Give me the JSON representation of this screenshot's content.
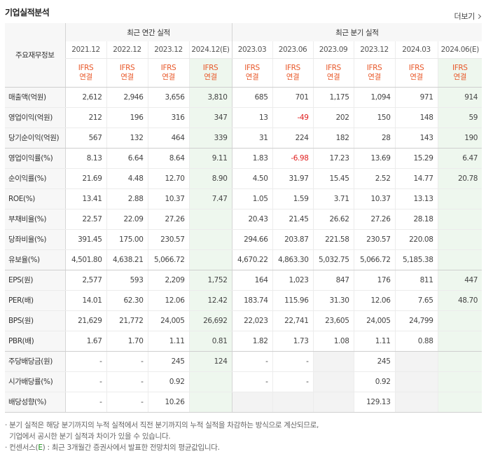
{
  "section_title": "기업실적분석",
  "more_label": "더보기",
  "header": {
    "label_col": "주요재무정보",
    "annual_group": "최근 연간 실적",
    "quarter_group": "최근 분기 실적",
    "periods": [
      "2021.12",
      "2022.12",
      "2023.12",
      "2024.12(E)",
      "2023.03",
      "2023.06",
      "2023.09",
      "2023.12",
      "2024.03",
      "2024.06(E)"
    ],
    "ifrs_line1": "IFRS",
    "ifrs_line2": "연결"
  },
  "rows": [
    {
      "label": "매출액(억원)",
      "values": [
        "2,612",
        "2,946",
        "3,656",
        "3,810",
        "685",
        "701",
        "1,175",
        "1,094",
        "971",
        "914"
      ]
    },
    {
      "label": "영업이익(억원)",
      "values": [
        "212",
        "196",
        "316",
        "347",
        "13",
        "-49",
        "202",
        "150",
        "148",
        "59"
      ]
    },
    {
      "label": "당기순이익(억원)",
      "values": [
        "567",
        "132",
        "464",
        "339",
        "31",
        "224",
        "182",
        "28",
        "143",
        "190"
      ]
    },
    {
      "label": "영업이익률(%)",
      "values": [
        "8.13",
        "6.64",
        "8.64",
        "9.11",
        "1.83",
        "-6.98",
        "17.23",
        "13.69",
        "15.29",
        "6.47"
      ]
    },
    {
      "label": "순이익률(%)",
      "values": [
        "21.69",
        "4.48",
        "12.70",
        "8.90",
        "4.50",
        "31.97",
        "15.45",
        "2.52",
        "14.77",
        "20.78"
      ]
    },
    {
      "label": "ROE(%)",
      "values": [
        "13.41",
        "2.88",
        "10.37",
        "7.47",
        "1.05",
        "1.59",
        "3.71",
        "10.37",
        "13.13",
        ""
      ]
    },
    {
      "label": "부채비율(%)",
      "values": [
        "22.57",
        "22.09",
        "27.26",
        "",
        "20.43",
        "21.45",
        "26.62",
        "27.26",
        "28.18",
        ""
      ]
    },
    {
      "label": "당좌비율(%)",
      "values": [
        "391.45",
        "175.00",
        "230.57",
        "",
        "294.66",
        "203.87",
        "221.58",
        "230.57",
        "220.08",
        ""
      ]
    },
    {
      "label": "유보율(%)",
      "values": [
        "4,501.80",
        "4,638.21",
        "5,066.72",
        "",
        "4,670.22",
        "4,863.30",
        "5,032.75",
        "5,066.72",
        "5,185.38",
        ""
      ]
    },
    {
      "label": "EPS(원)",
      "values": [
        "2,577",
        "593",
        "2,209",
        "1,752",
        "164",
        "1,023",
        "847",
        "176",
        "811",
        "447"
      ]
    },
    {
      "label": "PER(배)",
      "values": [
        "14.01",
        "62.30",
        "12.06",
        "12.42",
        "183.74",
        "115.96",
        "31.30",
        "12.06",
        "7.65",
        "48.70"
      ]
    },
    {
      "label": "BPS(원)",
      "values": [
        "21,629",
        "21,772",
        "24,005",
        "26,692",
        "22,023",
        "22,741",
        "23,605",
        "24,005",
        "24,799",
        ""
      ]
    },
    {
      "label": "PBR(배)",
      "values": [
        "1.67",
        "1.70",
        "1.11",
        "0.81",
        "1.82",
        "1.73",
        "1.08",
        "1.11",
        "0.88",
        ""
      ]
    },
    {
      "label": "주당배당금(원)",
      "values": [
        "-",
        "-",
        "245",
        "124",
        "-",
        "-",
        "",
        "245",
        "",
        ""
      ]
    },
    {
      "label": "시가배당률(%)",
      "values": [
        "-",
        "-",
        "0.92",
        "",
        "-",
        "-",
        "",
        "0.92",
        "",
        ""
      ]
    },
    {
      "label": "배당성향(%)",
      "values": [
        "-",
        "-",
        "10.26",
        "",
        "",
        "",
        "",
        "129.13",
        "",
        ""
      ]
    }
  ],
  "notes": {
    "note1_line1": "· 분기 실적은 해당 분기까지의 누적 실적에서 직전 분기까지의 누적 실적을 차감하는 방식으로 계산되므로,",
    "note1_line2": "기업에서 공시한 분기 실적과 차이가 있을 수 있습니다.",
    "note2_prefix": "· 컨센서스(",
    "note2_mark": "E",
    "note2_suffix": ") : 최근 3개월간 증권사에서 발표한 전망치의 평균값입니다."
  }
}
